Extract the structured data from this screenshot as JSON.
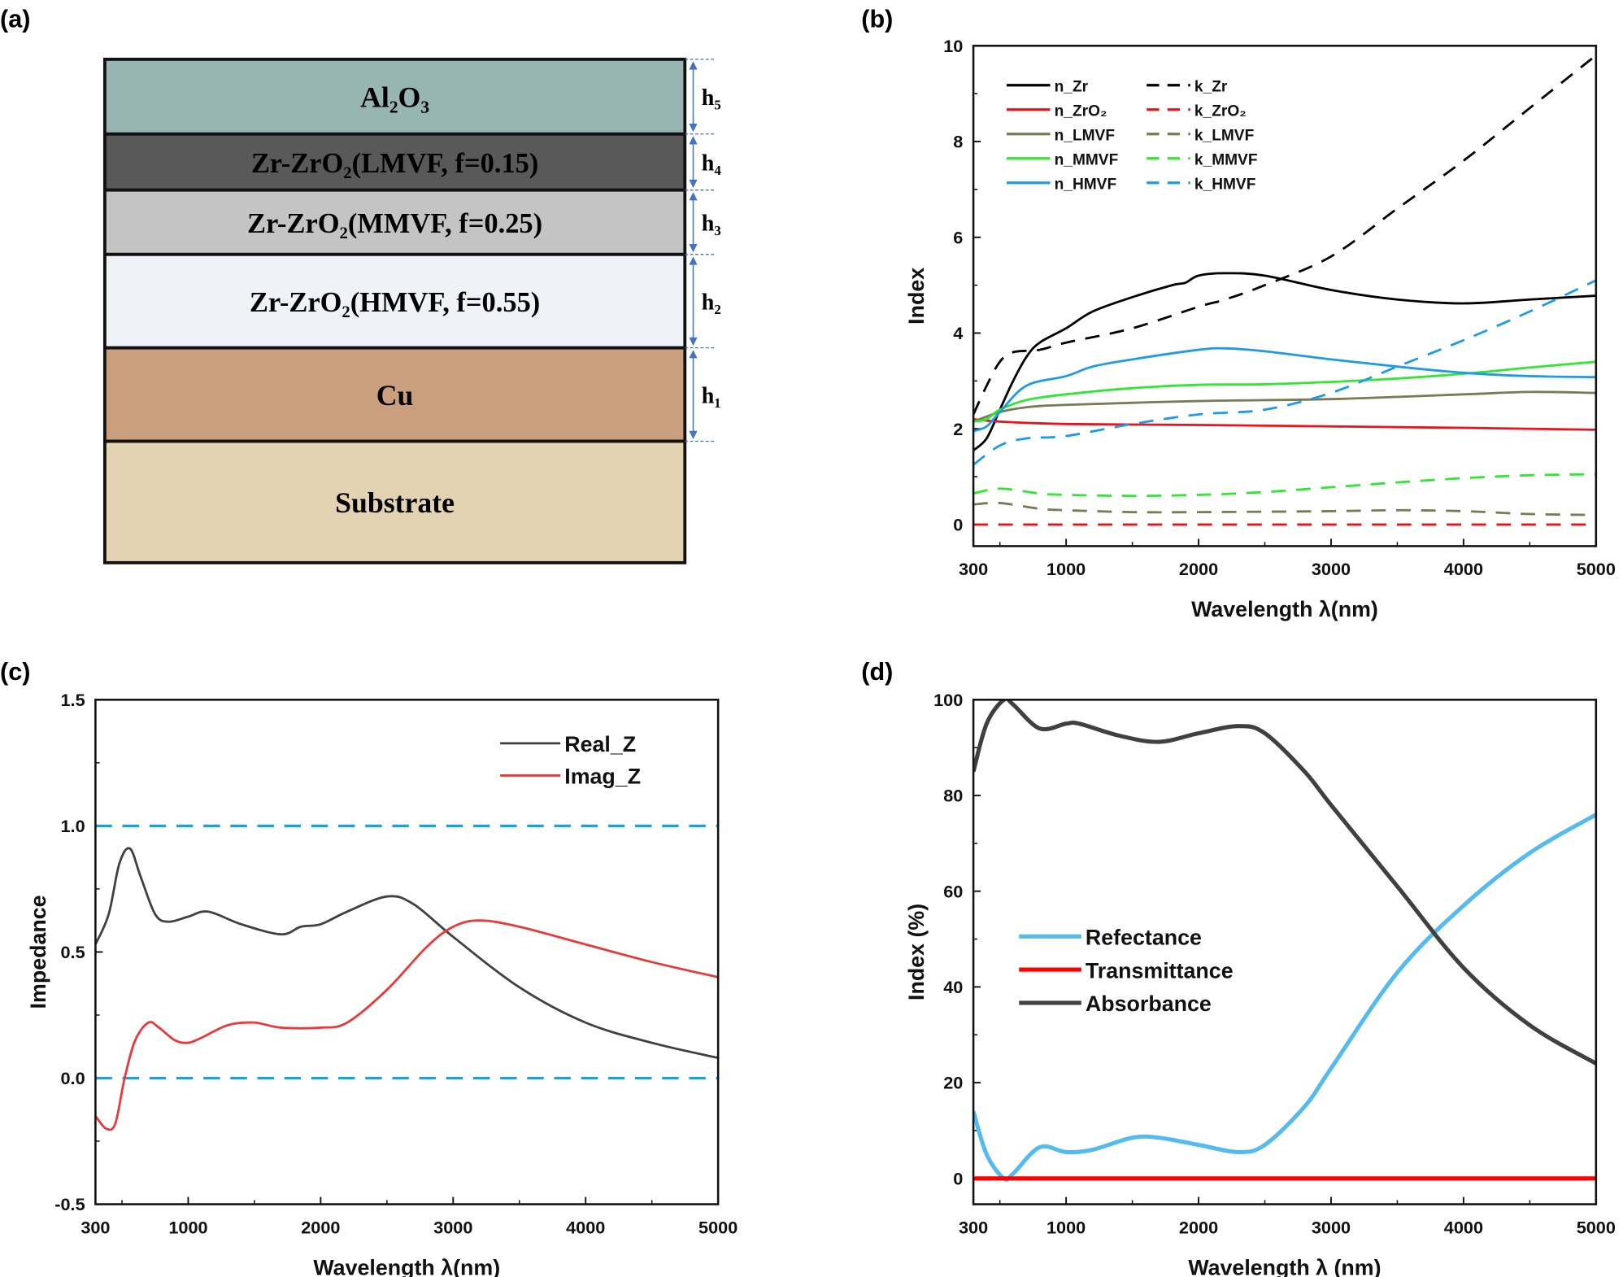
{
  "diagram": {
    "panel_label": "(a)",
    "layers": [
      {
        "label": "Al₂O₃",
        "color": "#97b6b3",
        "thickness_label": "h₅"
      },
      {
        "label": "Zr-ZrO₂(LMVF, f=0.15)",
        "color": "#595959",
        "thickness_label": "h₄"
      },
      {
        "label": "Zr-ZrO₂(MMVF, f=0.25)",
        "color": "#c4c4c4",
        "thickness_label": "h₃"
      },
      {
        "label": "Zr-ZrO₂(HMVF, f=0.55)",
        "color": "#eff3f8",
        "thickness_label": "h₂"
      },
      {
        "label": "Cu",
        "color": "#c99f7e",
        "thickness_label": "h₁"
      },
      {
        "label": "Substrate",
        "color": "#e4d3b3",
        "thickness_label": ""
      }
    ],
    "arrow_color": "#4472c4"
  },
  "chart_data": [
    {
      "panel_label": "(b)",
      "type": "line",
      "xlabel": "Wavelength λ(nm)",
      "ylabel": "Index",
      "xlim": [
        300,
        5000
      ],
      "ylim": [
        -0.45,
        10
      ],
      "xticks": [
        300,
        1000,
        2000,
        3000,
        4000,
        5000
      ],
      "yticks": [
        0,
        2,
        4,
        6,
        8,
        10
      ],
      "legend": "top-left",
      "grid": false,
      "series": [
        {
          "name": "n_Zr",
          "color": "#000000",
          "dash": false,
          "x": [
            300,
            400,
            500,
            600,
            700,
            800,
            1000,
            1200,
            1500,
            1800,
            1900,
            2000,
            2200,
            2500,
            3000,
            3500,
            4000,
            4500,
            5000
          ],
          "y": [
            1.55,
            1.8,
            2.4,
            3.0,
            3.5,
            3.8,
            4.1,
            4.45,
            4.75,
            5.0,
            5.05,
            5.2,
            5.25,
            5.2,
            4.9,
            4.7,
            4.62,
            4.7,
            4.78
          ]
        },
        {
          "name": "n_ZrO₂",
          "color": "#e8141a",
          "dash": false,
          "x": [
            300,
            500,
            1000,
            2000,
            3000,
            4000,
            5000
          ],
          "y": [
            2.2,
            2.15,
            2.1,
            2.08,
            2.05,
            2.02,
            1.98
          ]
        },
        {
          "name": "n_LMVF",
          "color": "#7a7a55",
          "dash": false,
          "x": [
            300,
            500,
            700,
            1000,
            2000,
            3000,
            4000,
            4500,
            5000
          ],
          "y": [
            2.15,
            2.35,
            2.45,
            2.5,
            2.58,
            2.62,
            2.72,
            2.77,
            2.75
          ]
        },
        {
          "name": "n_MMVF",
          "color": "#33e633",
          "dash": false,
          "x": [
            300,
            400,
            500,
            700,
            1000,
            1500,
            2000,
            2500,
            3000,
            3500,
            4000,
            4500,
            5000
          ],
          "y": [
            2.15,
            2.2,
            2.4,
            2.6,
            2.72,
            2.85,
            2.92,
            2.93,
            2.98,
            3.05,
            3.15,
            3.28,
            3.4
          ]
        },
        {
          "name": "n_HMVF",
          "color": "#1e9be6",
          "dash": false,
          "x": [
            300,
            400,
            500,
            700,
            1000,
            1200,
            1500,
            2000,
            2200,
            2500,
            3000,
            3500,
            4000,
            4500,
            5000
          ],
          "y": [
            1.95,
            2.05,
            2.35,
            2.9,
            3.1,
            3.3,
            3.45,
            3.65,
            3.68,
            3.62,
            3.45,
            3.3,
            3.17,
            3.1,
            3.08
          ]
        },
        {
          "name": "k_Zr",
          "color": "#000000",
          "dash": true,
          "x": [
            300,
            400,
            500,
            600,
            800,
            1000,
            1500,
            2000,
            2200,
            2500,
            3000,
            3500,
            4000,
            4500,
            5000
          ],
          "y": [
            2.3,
            2.9,
            3.4,
            3.6,
            3.65,
            3.8,
            4.1,
            4.55,
            4.7,
            5.0,
            5.6,
            6.6,
            7.6,
            8.7,
            9.8
          ]
        },
        {
          "name": "k_ZrO₂",
          "color": "#e8141a",
          "dash": true,
          "x": [
            300,
            5000
          ],
          "y": [
            0,
            0
          ]
        },
        {
          "name": "k_LMVF",
          "color": "#7a7a55",
          "dash": true,
          "x": [
            300,
            500,
            800,
            1000,
            1500,
            2000,
            3000,
            3500,
            4000,
            4500,
            5000
          ],
          "y": [
            0.42,
            0.45,
            0.33,
            0.3,
            0.26,
            0.26,
            0.28,
            0.3,
            0.28,
            0.22,
            0.2
          ]
        },
        {
          "name": "k_MMVF",
          "color": "#33e633",
          "dash": true,
          "x": [
            300,
            500,
            800,
            1000,
            1500,
            2000,
            2500,
            3000,
            3500,
            4000,
            4500,
            5000
          ],
          "y": [
            0.65,
            0.75,
            0.65,
            0.62,
            0.6,
            0.62,
            0.68,
            0.78,
            0.88,
            0.97,
            1.03,
            1.05
          ]
        },
        {
          "name": "k_HMVF",
          "color": "#1e9be6",
          "dash": true,
          "x": [
            300,
            500,
            700,
            1000,
            1500,
            2000,
            2500,
            3000,
            3500,
            4000,
            4500,
            5000
          ],
          "y": [
            1.25,
            1.65,
            1.8,
            1.85,
            2.1,
            2.3,
            2.4,
            2.75,
            3.3,
            3.85,
            4.45,
            5.1
          ]
        }
      ]
    },
    {
      "panel_label": "(c)",
      "type": "line",
      "xlabel": "Wavelength λ(nm)",
      "ylabel": "Impedance",
      "xlim": [
        300,
        5000
      ],
      "ylim": [
        -0.5,
        1.5
      ],
      "xticks": [
        300,
        1000,
        2000,
        3000,
        4000,
        5000
      ],
      "yticks": [
        -0.5,
        0.0,
        0.5,
        1.0,
        1.5
      ],
      "ytick_labels": [
        "-0.5",
        "0.0",
        "0.5",
        "1.0",
        "1.5"
      ],
      "legend": "top-right",
      "grid": false,
      "reference_lines": [
        {
          "y": 1.0,
          "color": "#1aa3d9"
        },
        {
          "y": 0.0,
          "color": "#1aa3d9"
        }
      ],
      "series": [
        {
          "name": "Real_Z",
          "color": "#404040",
          "dash": false,
          "x": [
            300,
            400,
            480,
            560,
            640,
            750,
            850,
            1000,
            1150,
            1400,
            1700,
            1850,
            2000,
            2200,
            2500,
            2700,
            3000,
            3500,
            4000,
            4500,
            5000
          ],
          "y": [
            0.53,
            0.65,
            0.85,
            0.91,
            0.8,
            0.65,
            0.62,
            0.64,
            0.66,
            0.61,
            0.57,
            0.6,
            0.61,
            0.66,
            0.72,
            0.69,
            0.56,
            0.36,
            0.22,
            0.14,
            0.08
          ]
        },
        {
          "name": "Imag_Z",
          "color": "#e83a3a",
          "dash": false,
          "x": [
            300,
            380,
            450,
            520,
            600,
            700,
            780,
            900,
            1000,
            1100,
            1300,
            1500,
            1700,
            2000,
            2200,
            2500,
            2800,
            3000,
            3200,
            3500,
            4000,
            4500,
            5000
          ],
          "y": [
            -0.15,
            -0.2,
            -0.18,
            0,
            0.15,
            0.22,
            0.2,
            0.15,
            0.14,
            0.16,
            0.21,
            0.22,
            0.2,
            0.2,
            0.22,
            0.35,
            0.52,
            0.6,
            0.625,
            0.6,
            0.53,
            0.46,
            0.4
          ]
        }
      ]
    },
    {
      "panel_label": "(d)",
      "type": "line",
      "xlabel": "Wavelength λ (nm)",
      "ylabel": "Index (%)",
      "xlim": [
        300,
        5000
      ],
      "ylim": [
        -5.4,
        100
      ],
      "xticks": [
        300,
        1000,
        2000,
        3000,
        4000,
        5000
      ],
      "yticks": [
        0,
        20,
        40,
        60,
        80,
        100
      ],
      "legend": "center-left",
      "grid": false,
      "series": [
        {
          "name": "Refectance",
          "color": "#55bbee",
          "dash": false,
          "x": [
            300,
            400,
            530,
            600,
            800,
            1000,
            1200,
            1500,
            1700,
            2000,
            2300,
            2500,
            2800,
            3000,
            3500,
            4000,
            4500,
            5000
          ],
          "y": [
            14,
            5,
            0,
            1,
            6.5,
            5.5,
            6,
            8.5,
            8.5,
            7,
            5.5,
            7,
            15,
            23,
            43,
            57,
            68,
            76
          ]
        },
        {
          "name": "Transmittance",
          "color": "#ff0000",
          "dash": false,
          "x": [
            300,
            5000
          ],
          "y": [
            0,
            0
          ]
        },
        {
          "name": "Absorbance",
          "color": "#404040",
          "dash": false,
          "x": [
            300,
            400,
            530,
            600,
            800,
            1000,
            1100,
            1400,
            1700,
            2000,
            2300,
            2500,
            2800,
            3000,
            3500,
            4000,
            4500,
            5000
          ],
          "y": [
            85,
            95,
            100,
            99,
            94,
            95,
            95,
            92.5,
            91.2,
            93,
            94.5,
            93,
            85,
            78,
            61,
            44,
            32,
            24
          ]
        }
      ]
    }
  ]
}
